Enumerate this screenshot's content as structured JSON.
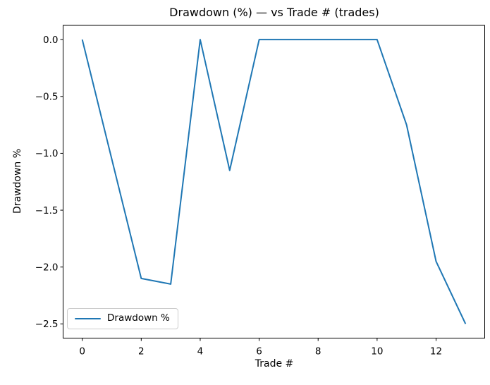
{
  "chart_data": {
    "type": "line",
    "title": "Drawdown (%) — vs Trade # (trades)",
    "xlabel": "Trade #",
    "ylabel": "Drawdown %",
    "x": [
      0,
      1,
      2,
      3,
      4,
      5,
      6,
      7,
      8,
      9,
      10,
      11,
      12,
      13
    ],
    "series": [
      {
        "name": "Drawdown %",
        "color": "#1f77b4",
        "values": [
          0.0,
          -1.05,
          -2.1,
          -2.15,
          0.0,
          -1.15,
          0.0,
          0.0,
          0.0,
          0.0,
          0.0,
          -0.75,
          -1.95,
          -2.5
        ]
      }
    ],
    "xlim": [
      -0.65,
      13.65
    ],
    "ylim": [
      -2.625,
      0.125
    ],
    "xticks": [
      0,
      2,
      4,
      6,
      8,
      10,
      12
    ],
    "xtick_labels": [
      "0",
      "2",
      "4",
      "6",
      "8",
      "10",
      "12"
    ],
    "yticks": [
      0.0,
      -0.5,
      -1.0,
      -1.5,
      -2.0,
      -2.5
    ],
    "ytick_labels": [
      "0.0",
      "−0.5",
      "−1.0",
      "−1.5",
      "−2.0",
      "−2.5"
    ],
    "grid": false,
    "legend": {
      "label": "Drawdown %",
      "position": "lower left"
    }
  },
  "colors": {
    "line": "#1f77b4",
    "spines": "#000000",
    "text": "#000000",
    "legend_border": "#cccccc",
    "background": "#ffffff"
  }
}
